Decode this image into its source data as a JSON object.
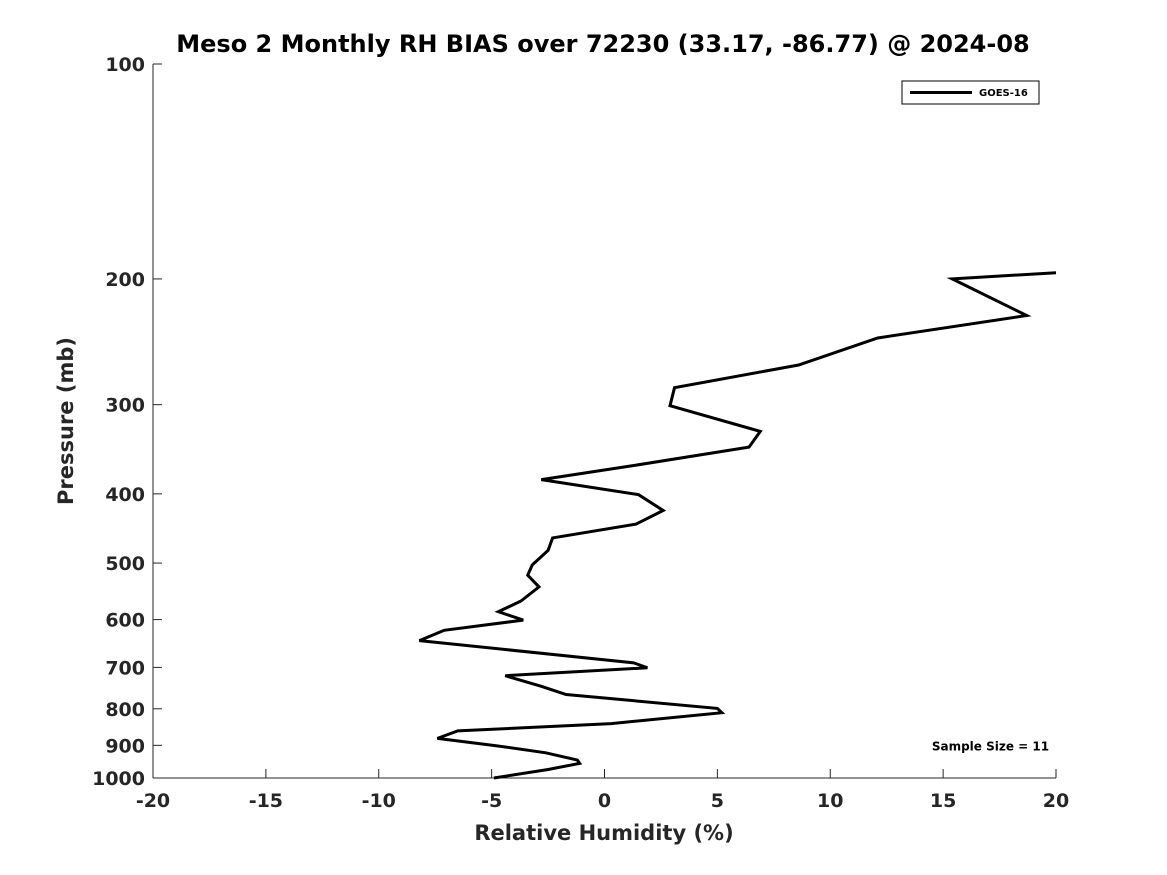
{
  "chart_data": {
    "type": "line",
    "title": "Meso 2 Monthly RH BIAS over 72230 (33.17, -86.77) @ 2024-08",
    "xlabel": "Relative Humidity (%)",
    "ylabel": "Pressure (mb)",
    "xlim": [
      -20,
      20
    ],
    "ylim": [
      100,
      1000
    ],
    "y_scale": "log",
    "y_reversed": true,
    "x_ticks": [
      -20,
      -15,
      -10,
      -5,
      0,
      5,
      10,
      15,
      20
    ],
    "y_ticks": [
      100,
      200,
      300,
      400,
      500,
      600,
      700,
      800,
      900,
      1000
    ],
    "grid": false,
    "legend_position": "top-right",
    "series": [
      {
        "name": "GOES-16",
        "color": "#000000",
        "points": [
          {
            "x": 20.0,
            "y": 196
          },
          {
            "x": 15.4,
            "y": 200
          },
          {
            "x": 18.7,
            "y": 225
          },
          {
            "x": 12.1,
            "y": 242
          },
          {
            "x": 8.6,
            "y": 264
          },
          {
            "x": 3.1,
            "y": 284
          },
          {
            "x": 2.9,
            "y": 301
          },
          {
            "x": 6.9,
            "y": 327
          },
          {
            "x": 6.4,
            "y": 344
          },
          {
            "x": 1.3,
            "y": 365
          },
          {
            "x": -2.8,
            "y": 382
          },
          {
            "x": 1.5,
            "y": 401
          },
          {
            "x": 2.6,
            "y": 422
          },
          {
            "x": 1.4,
            "y": 441
          },
          {
            "x": -2.3,
            "y": 461
          },
          {
            "x": -2.5,
            "y": 480
          },
          {
            "x": -3.2,
            "y": 503
          },
          {
            "x": -3.4,
            "y": 520
          },
          {
            "x": -2.9,
            "y": 540
          },
          {
            "x": -3.7,
            "y": 565
          },
          {
            "x": -4.7,
            "y": 585
          },
          {
            "x": -3.6,
            "y": 601
          },
          {
            "x": -7.1,
            "y": 621
          },
          {
            "x": -8.2,
            "y": 642
          },
          {
            "x": 1.3,
            "y": 690
          },
          {
            "x": 1.9,
            "y": 701
          },
          {
            "x": -4.4,
            "y": 719
          },
          {
            "x": -2.8,
            "y": 744
          },
          {
            "x": -1.7,
            "y": 764
          },
          {
            "x": 5.0,
            "y": 799
          },
          {
            "x": 5.2,
            "y": 810
          },
          {
            "x": 0.3,
            "y": 839
          },
          {
            "x": -6.5,
            "y": 859
          },
          {
            "x": -7.4,
            "y": 880
          },
          {
            "x": -4.8,
            "y": 901
          },
          {
            "x": -2.6,
            "y": 922
          },
          {
            "x": -1.2,
            "y": 944
          },
          {
            "x": -1.1,
            "y": 954
          },
          {
            "x": -2.5,
            "y": 973
          },
          {
            "x": -4.9,
            "y": 1000
          }
        ]
      }
    ],
    "annotations": [
      {
        "text": "Sample Size = 11",
        "x": 14.5,
        "y": 900
      }
    ]
  }
}
